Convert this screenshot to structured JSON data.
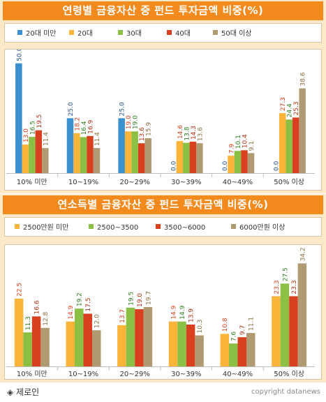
{
  "colors": {
    "blue": "#3a8fcf",
    "yellow": "#fbb43a",
    "green": "#8cc044",
    "red": "#d8401f",
    "brown": "#b09a72"
  },
  "chart_data": [
    {
      "type": "bar",
      "title": "연령별 금융자산 중 펀드 투자금액 비중(%)",
      "categories": [
        "10% 미만",
        "10~19%",
        "20~29%",
        "30~39%",
        "40~49%",
        "50% 이상"
      ],
      "series": [
        {
          "name": "20대 미만",
          "color": "#3a8fcf",
          "values": [
            50.0,
            25.0,
            25.0,
            0.0,
            0.0,
            0.0
          ]
        },
        {
          "name": "20대",
          "color": "#fbb43a",
          "values": [
            13.0,
            18.2,
            19.0,
            14.6,
            7.9,
            27.3
          ]
        },
        {
          "name": "30대",
          "color": "#8cc044",
          "values": [
            16.5,
            16.4,
            19.0,
            13.8,
            10.1,
            24.4
          ]
        },
        {
          "name": "40대",
          "color": "#d8401f",
          "values": [
            19.5,
            16.9,
            13.6,
            14.3,
            10.4,
            25.3
          ]
        },
        {
          "name": "50대 이상",
          "color": "#b09a72",
          "values": [
            11.4,
            11.4,
            15.9,
            13.6,
            9.1,
            38.6
          ]
        }
      ],
      "ylim": [
        0,
        55
      ],
      "legend": "top"
    },
    {
      "type": "bar",
      "title": "연소득별 금융자산 중 펀드 투자금액 비중(%)",
      "categories": [
        "10% 미만",
        "10~19%",
        "20~29%",
        "30~39%",
        "40~49%",
        "50% 이상"
      ],
      "series": [
        {
          "name": "2500만원 미만",
          "color": "#fbb43a",
          "values": [
            22.5,
            14.9,
            13.7,
            14.9,
            10.8,
            23.3
          ]
        },
        {
          "name": "2500~3500",
          "color": "#8cc044",
          "values": [
            11.3,
            19.2,
            19.5,
            14.9,
            7.6,
            27.5
          ]
        },
        {
          "name": "3500~6000",
          "color": "#d8401f",
          "values": [
            16.6,
            17.5,
            19.0,
            13.9,
            9.7,
            23.3
          ]
        },
        {
          "name": "6000만원 이상",
          "color": "#b09a72",
          "values": [
            12.8,
            12.0,
            19.7,
            10.3,
            11.1,
            34.2
          ]
        }
      ],
      "ylim": [
        0,
        38
      ],
      "legend": "top"
    }
  ],
  "footer": {
    "credit": "◈ 제로인",
    "copyright": "copyright datanews"
  }
}
